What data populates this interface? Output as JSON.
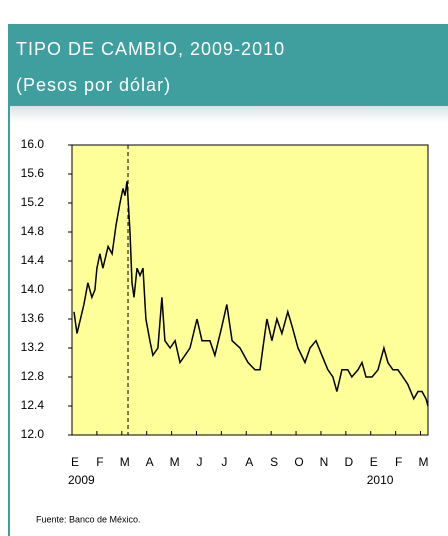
{
  "chart_data": {
    "type": "line",
    "title": "TIPO DE CAMBIO, 2009-2010",
    "subtitle": "(Pesos por dólar)",
    "source": "Fuente: Banco de México.",
    "categories": [
      "E",
      "F",
      "M",
      "A",
      "M",
      "J",
      "J",
      "A",
      "S",
      "O",
      "N",
      "D",
      "E",
      "F",
      "M"
    ],
    "year_labels": [
      "2009",
      "2010"
    ],
    "xlim": [
      0,
      14.3
    ],
    "reference_x": 2.25,
    "ylim": [
      12,
      16
    ],
    "yticks": [
      {
        "value": 12,
        "label": "12.0"
      },
      12.4,
      12.8,
      13.2,
      13.6,
      {
        "value": 14,
        "label": "14.0"
      },
      14.4,
      14.8,
      15.2,
      15.6,
      {
        "value": 16,
        "label": "16.0"
      }
    ],
    "background": "#ffff99",
    "series": [
      {
        "color": "#000000",
        "x": [
          0.08,
          0.2,
          0.48,
          0.64,
          0.8,
          0.92,
          1.0,
          1.12,
          1.24,
          1.45,
          1.61,
          1.77,
          1.93,
          2.05,
          2.13,
          2.21,
          2.33,
          2.41,
          2.49,
          2.61,
          2.73,
          2.85,
          2.97,
          3.13,
          3.25,
          3.45,
          3.61,
          3.73,
          3.94,
          4.14,
          4.34,
          4.54,
          4.74,
          5.02,
          5.22,
          5.54,
          5.74,
          6.02,
          6.22,
          6.43,
          6.75,
          7.07,
          7.35,
          7.55,
          7.67,
          7.83,
          8.03,
          8.23,
          8.43,
          8.67,
          8.84,
          9.08,
          9.36,
          9.56,
          9.8,
          10.04,
          10.28,
          10.48,
          10.64,
          10.84,
          11.08,
          11.24,
          11.49,
          11.65,
          11.81,
          12.05,
          12.29,
          12.53,
          12.69,
          12.89,
          13.09,
          13.29,
          13.49,
          13.73,
          13.9,
          14.06,
          14.22,
          14.3
        ],
        "values": [
          13.7,
          13.4,
          13.8,
          14.1,
          13.9,
          14.0,
          14.3,
          14.5,
          14.3,
          14.6,
          14.5,
          14.9,
          15.2,
          15.4,
          15.3,
          15.5,
          14.8,
          14.1,
          13.9,
          14.3,
          14.2,
          14.3,
          13.6,
          13.3,
          13.1,
          13.2,
          13.9,
          13.3,
          13.2,
          13.3,
          13.0,
          13.1,
          13.2,
          13.6,
          13.3,
          13.3,
          13.1,
          13.5,
          13.8,
          13.3,
          13.2,
          13.0,
          12.9,
          12.9,
          13.2,
          13.6,
          13.3,
          13.6,
          13.4,
          13.7,
          13.5,
          13.2,
          13.0,
          13.2,
          13.3,
          13.1,
          12.9,
          12.8,
          12.6,
          12.9,
          12.9,
          12.8,
          12.9,
          13.0,
          12.8,
          12.8,
          12.9,
          13.2,
          13.0,
          12.9,
          12.9,
          12.8,
          12.7,
          12.5,
          12.6,
          12.6,
          12.5,
          12.4
        ]
      }
    ]
  }
}
